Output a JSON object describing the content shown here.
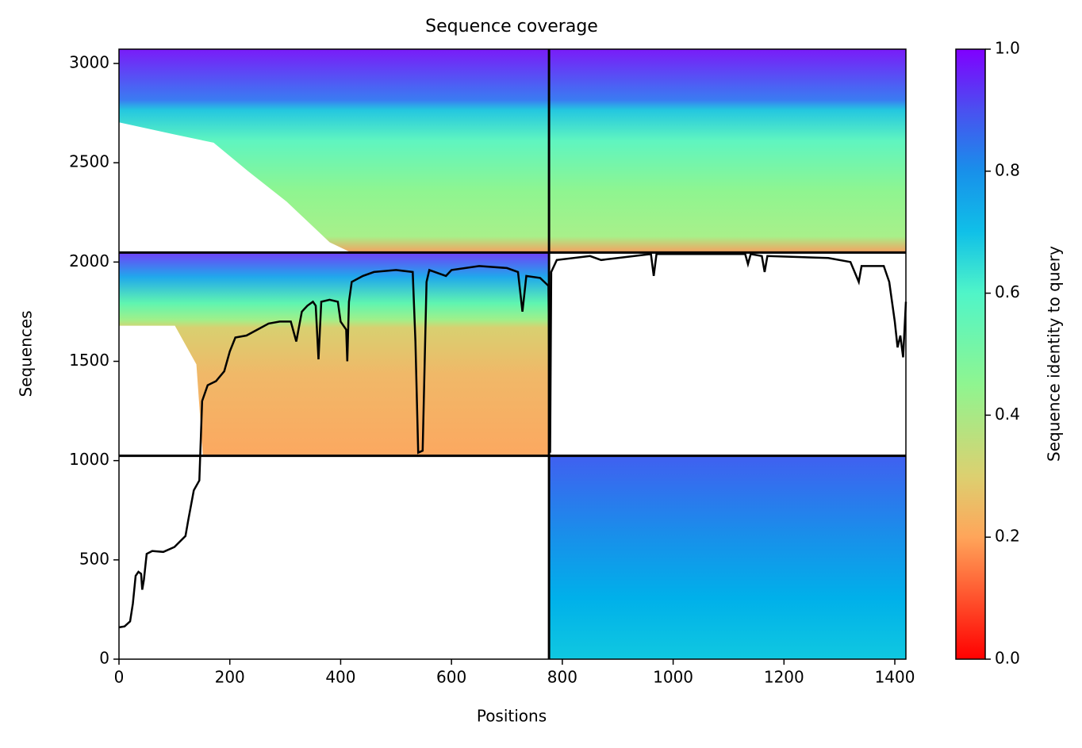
{
  "chart_data": {
    "type": "line",
    "title": "Sequence coverage",
    "x_label": "Positions",
    "y_label": "Sequences",
    "colorbar_label": "Sequence identity to query",
    "xlim": [
      0,
      1420
    ],
    "ylim": [
      0,
      3072
    ],
    "xticks": [
      0,
      200,
      400,
      600,
      800,
      1000,
      1200,
      1400
    ],
    "yticks": [
      0,
      500,
      1000,
      1500,
      2000,
      2500,
      3000
    ],
    "clim": [
      0,
      1
    ],
    "cticks": [
      {
        "value": 0,
        "label": "0.0"
      },
      0.2,
      0.4,
      0.6,
      0.8,
      {
        "value": 1,
        "label": "1.0"
      }
    ],
    "x_dividers": [
      776
    ],
    "y_dividers": [
      1024,
      2048
    ],
    "series": [
      {
        "color": "#000000",
        "x": [
          0,
          10,
          20,
          25,
          30,
          35,
          40,
          42,
          45,
          50,
          60,
          80,
          100,
          120,
          125,
          135,
          145,
          150,
          160,
          175,
          190,
          200,
          210,
          230,
          250,
          270,
          290,
          310,
          320,
          330,
          340,
          350,
          355,
          360,
          365,
          380,
          395,
          400,
          410,
          412,
          415,
          420,
          440,
          460,
          500,
          530,
          535,
          540,
          548,
          555,
          560,
          590,
          600,
          650,
          700,
          720,
          728,
          735,
          760,
          775,
          778,
          780,
          790,
          850,
          870,
          960,
          965,
          970,
          1100,
          1130,
          1135,
          1140,
          1160,
          1165,
          1170,
          1280,
          1320,
          1335,
          1340,
          1380,
          1390,
          1400,
          1405,
          1410,
          1415,
          1420
        ],
        "values": [
          160,
          165,
          190,
          280,
          420,
          440,
          430,
          350,
          400,
          530,
          545,
          540,
          565,
          620,
          700,
          850,
          900,
          1300,
          1380,
          1400,
          1450,
          1550,
          1620,
          1630,
          1660,
          1690,
          1700,
          1700,
          1600,
          1750,
          1780,
          1800,
          1780,
          1510,
          1800,
          1810,
          1800,
          1700,
          1660,
          1500,
          1800,
          1900,
          1930,
          1950,
          1960,
          1950,
          1600,
          1040,
          1050,
          1900,
          1960,
          1930,
          1960,
          1980,
          1970,
          1950,
          1750,
          1930,
          1920,
          1880,
          1040,
          1950,
          2010,
          2030,
          2010,
          2040,
          1930,
          2040,
          2040,
          2040,
          1990,
          2040,
          2030,
          1950,
          2030,
          2020,
          2000,
          1900,
          1980,
          1980,
          1900,
          1700,
          1570,
          1630,
          1520,
          1800
        ]
      }
    ]
  }
}
